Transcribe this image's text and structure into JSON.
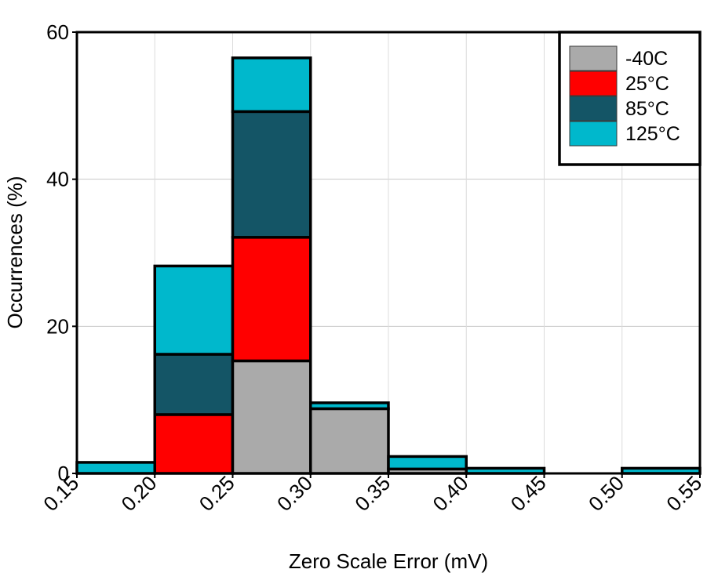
{
  "chart_data": {
    "type": "bar",
    "stacked": true,
    "x_bins": [
      [
        0.15,
        0.2
      ],
      [
        0.2,
        0.25
      ],
      [
        0.25,
        0.3
      ],
      [
        0.3,
        0.35
      ],
      [
        0.35,
        0.4
      ],
      [
        0.4,
        0.45
      ],
      [
        0.45,
        0.5
      ],
      [
        0.5,
        0.55
      ]
    ],
    "x_ticks": [
      "0.15",
      "0.20",
      "0.25",
      "0.30",
      "0.35",
      "0.40",
      "0.45",
      "0.50",
      "0.55"
    ],
    "y_ticks": [
      "0",
      "20",
      "40",
      "60"
    ],
    "xlim": [
      0.15,
      0.55
    ],
    "ylim": [
      0,
      60
    ],
    "xlabel": "Zero Scale Error (mV)",
    "ylabel": "Occurrences (%)",
    "grid": "horizontal",
    "legend_position": "top-right",
    "series": [
      {
        "name": "-40C",
        "color": "#aaaaaa",
        "values": [
          0,
          0,
          15.3,
          8.8,
          0.6,
          0,
          0,
          0
        ]
      },
      {
        "name": "25°C",
        "color": "#ff0000",
        "values": [
          0,
          8,
          16.8,
          0,
          0,
          0,
          0,
          0
        ]
      },
      {
        "name": "85°C",
        "color": "#145566",
        "values": [
          0,
          8.2,
          17.1,
          0,
          0,
          0,
          0,
          0
        ]
      },
      {
        "name": "125°C",
        "color": "#00b8cc",
        "values": [
          1.5,
          12,
          7.3,
          0.8,
          1.7,
          0.7,
          0,
          0.7
        ]
      }
    ]
  }
}
